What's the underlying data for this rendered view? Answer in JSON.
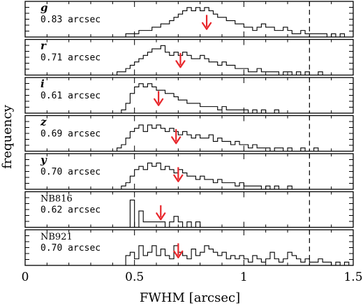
{
  "chart_data": {
    "type": "histogram",
    "ylabel": "frequency",
    "xlabel": "FWHM [arcsec]",
    "xlim": [
      0,
      1.5
    ],
    "x_ticks": [
      0,
      0.5,
      1,
      1.5
    ],
    "x_tick_labels": [
      "0",
      "0.5",
      "1",
      "1.5"
    ],
    "bin_width": 0.02,
    "reference_line_x": 1.3,
    "colors": {
      "arrow": "#e8262b",
      "line": "#000000",
      "background": "#ffffff"
    },
    "panels": [
      {
        "band": "g",
        "band_italic": true,
        "median_label": "0.83 arcsec",
        "median": 0.83,
        "freq_max": 10,
        "bins": [
          [
            0.44,
            0
          ],
          [
            0.46,
            1
          ],
          [
            0.48,
            1
          ],
          [
            0.5,
            1
          ],
          [
            0.52,
            2
          ],
          [
            0.54,
            2
          ],
          [
            0.56,
            2
          ],
          [
            0.58,
            3
          ],
          [
            0.6,
            3
          ],
          [
            0.62,
            4
          ],
          [
            0.64,
            4
          ],
          [
            0.66,
            5
          ],
          [
            0.68,
            6
          ],
          [
            0.7,
            7
          ],
          [
            0.72,
            8
          ],
          [
            0.74,
            9
          ],
          [
            0.76,
            8
          ],
          [
            0.78,
            9
          ],
          [
            0.8,
            8
          ],
          [
            0.82,
            9
          ],
          [
            0.84,
            8
          ],
          [
            0.86,
            7
          ],
          [
            0.88,
            6
          ],
          [
            0.9,
            6
          ],
          [
            0.92,
            5
          ],
          [
            0.94,
            5
          ],
          [
            0.96,
            4
          ],
          [
            0.98,
            4
          ],
          [
            1.0,
            3
          ],
          [
            1.02,
            3
          ],
          [
            1.04,
            2
          ],
          [
            1.06,
            3
          ],
          [
            1.08,
            4
          ],
          [
            1.1,
            3
          ],
          [
            1.12,
            3
          ],
          [
            1.14,
            2
          ],
          [
            1.16,
            2
          ],
          [
            1.18,
            3
          ],
          [
            1.2,
            2
          ],
          [
            1.22,
            1
          ],
          [
            1.24,
            1
          ],
          [
            1.26,
            2
          ],
          [
            1.28,
            1
          ],
          [
            1.3,
            1
          ],
          [
            1.32,
            1
          ],
          [
            1.34,
            1
          ],
          [
            1.36,
            1
          ],
          [
            1.38,
            0
          ],
          [
            1.4,
            1
          ],
          [
            1.42,
            0
          ],
          [
            1.44,
            1
          ],
          [
            1.46,
            0
          ]
        ]
      },
      {
        "band": "r",
        "band_italic": true,
        "median_label": "0.71 arcsec",
        "median": 0.71,
        "freq_max": 10,
        "bins": [
          [
            0.42,
            1
          ],
          [
            0.44,
            1
          ],
          [
            0.46,
            2
          ],
          [
            0.48,
            3
          ],
          [
            0.5,
            4
          ],
          [
            0.52,
            5
          ],
          [
            0.54,
            6
          ],
          [
            0.56,
            7
          ],
          [
            0.58,
            8
          ],
          [
            0.6,
            8
          ],
          [
            0.62,
            9
          ],
          [
            0.64,
            7
          ],
          [
            0.66,
            6
          ],
          [
            0.68,
            7
          ],
          [
            0.7,
            6
          ],
          [
            0.72,
            7
          ],
          [
            0.74,
            6
          ],
          [
            0.76,
            5
          ],
          [
            0.78,
            5
          ],
          [
            0.8,
            6
          ],
          [
            0.82,
            5
          ],
          [
            0.84,
            4
          ],
          [
            0.86,
            4
          ],
          [
            0.88,
            3
          ],
          [
            0.9,
            4
          ],
          [
            0.92,
            3
          ],
          [
            0.94,
            3
          ],
          [
            0.96,
            2
          ],
          [
            0.98,
            2
          ],
          [
            1.0,
            2
          ],
          [
            1.02,
            1
          ],
          [
            1.04,
            1
          ],
          [
            1.06,
            2
          ],
          [
            1.08,
            1
          ],
          [
            1.1,
            1
          ],
          [
            1.12,
            1
          ],
          [
            1.14,
            1
          ],
          [
            1.16,
            0
          ],
          [
            1.18,
            1
          ],
          [
            1.2,
            1
          ],
          [
            1.22,
            0
          ],
          [
            1.24,
            1
          ],
          [
            1.26,
            0
          ],
          [
            1.28,
            1
          ],
          [
            1.3,
            0
          ],
          [
            1.32,
            0
          ],
          [
            1.34,
            1
          ],
          [
            1.36,
            0
          ]
        ]
      },
      {
        "band": "i",
        "band_italic": true,
        "median_label": "0.61 arcsec",
        "median": 0.61,
        "freq_max": 10,
        "bins": [
          [
            0.44,
            1
          ],
          [
            0.46,
            3
          ],
          [
            0.48,
            6
          ],
          [
            0.5,
            8
          ],
          [
            0.52,
            9
          ],
          [
            0.54,
            8
          ],
          [
            0.56,
            9
          ],
          [
            0.58,
            8
          ],
          [
            0.6,
            7
          ],
          [
            0.62,
            7
          ],
          [
            0.64,
            6
          ],
          [
            0.66,
            6
          ],
          [
            0.68,
            5
          ],
          [
            0.7,
            4
          ],
          [
            0.72,
            4
          ],
          [
            0.74,
            3
          ],
          [
            0.76,
            3
          ],
          [
            0.78,
            3
          ],
          [
            0.8,
            2
          ],
          [
            0.82,
            2
          ],
          [
            0.84,
            2
          ],
          [
            0.86,
            2
          ],
          [
            0.88,
            1
          ],
          [
            0.9,
            2
          ],
          [
            0.92,
            1
          ],
          [
            0.94,
            1
          ],
          [
            0.96,
            1
          ],
          [
            0.98,
            1
          ],
          [
            1.0,
            1
          ],
          [
            1.02,
            0
          ],
          [
            1.04,
            1
          ],
          [
            1.06,
            0
          ],
          [
            1.08,
            1
          ],
          [
            1.1,
            0
          ],
          [
            1.12,
            0
          ],
          [
            1.14,
            1
          ],
          [
            1.16,
            0
          ]
        ]
      },
      {
        "band": "z",
        "band_italic": true,
        "median_label": "0.69 arcsec",
        "median": 0.69,
        "freq_max": 10,
        "bins": [
          [
            0.42,
            1
          ],
          [
            0.44,
            2
          ],
          [
            0.46,
            4
          ],
          [
            0.48,
            6
          ],
          [
            0.5,
            7
          ],
          [
            0.52,
            8
          ],
          [
            0.54,
            6
          ],
          [
            0.56,
            8
          ],
          [
            0.58,
            7
          ],
          [
            0.6,
            8
          ],
          [
            0.62,
            7
          ],
          [
            0.64,
            6
          ],
          [
            0.66,
            7
          ],
          [
            0.68,
            6
          ],
          [
            0.7,
            5
          ],
          [
            0.72,
            6
          ],
          [
            0.74,
            5
          ],
          [
            0.76,
            4
          ],
          [
            0.78,
            5
          ],
          [
            0.8,
            4
          ],
          [
            0.82,
            4
          ],
          [
            0.84,
            5
          ],
          [
            0.86,
            3
          ],
          [
            0.88,
            4
          ],
          [
            0.9,
            3
          ],
          [
            0.92,
            3
          ],
          [
            0.94,
            2
          ],
          [
            0.96,
            3
          ],
          [
            0.98,
            2
          ],
          [
            1.0,
            2
          ],
          [
            1.02,
            1
          ],
          [
            1.04,
            2
          ],
          [
            1.06,
            1
          ],
          [
            1.08,
            1
          ],
          [
            1.1,
            1
          ],
          [
            1.12,
            0
          ],
          [
            1.14,
            1
          ],
          [
            1.16,
            1
          ],
          [
            1.18,
            0
          ],
          [
            1.2,
            1
          ],
          [
            1.22,
            0
          ],
          [
            1.24,
            0
          ],
          [
            1.26,
            1
          ],
          [
            1.28,
            0
          ],
          [
            1.3,
            0
          ],
          [
            1.32,
            1
          ],
          [
            1.34,
            0
          ]
        ]
      },
      {
        "band": "y",
        "band_italic": true,
        "median_label": "0.70 arcsec",
        "median": 0.7,
        "freq_max": 10,
        "bins": [
          [
            0.44,
            1
          ],
          [
            0.46,
            2
          ],
          [
            0.48,
            4
          ],
          [
            0.5,
            6
          ],
          [
            0.52,
            7
          ],
          [
            0.54,
            6
          ],
          [
            0.56,
            8
          ],
          [
            0.58,
            7
          ],
          [
            0.6,
            8
          ],
          [
            0.62,
            6
          ],
          [
            0.64,
            7
          ],
          [
            0.66,
            6
          ],
          [
            0.68,
            5
          ],
          [
            0.7,
            6
          ],
          [
            0.72,
            5
          ],
          [
            0.74,
            4
          ],
          [
            0.76,
            4
          ],
          [
            0.78,
            3
          ],
          [
            0.8,
            4
          ],
          [
            0.82,
            3
          ],
          [
            0.84,
            3
          ],
          [
            0.86,
            2
          ],
          [
            0.88,
            3
          ],
          [
            0.9,
            2
          ],
          [
            0.92,
            2
          ],
          [
            0.94,
            2
          ],
          [
            0.96,
            1
          ],
          [
            0.98,
            2
          ],
          [
            1.0,
            1
          ],
          [
            1.02,
            1
          ],
          [
            1.04,
            1
          ],
          [
            1.06,
            1
          ],
          [
            1.08,
            0
          ],
          [
            1.1,
            1
          ],
          [
            1.12,
            0
          ],
          [
            1.14,
            1
          ],
          [
            1.16,
            0
          ],
          [
            1.18,
            0
          ],
          [
            1.2,
            1
          ],
          [
            1.22,
            0
          ]
        ]
      },
      {
        "band": "NB816",
        "band_italic": false,
        "median_label": "0.62 arcsec",
        "median": 0.62,
        "freq_max": 6,
        "bins": [
          [
            0.46,
            0
          ],
          [
            0.48,
            5
          ],
          [
            0.5,
            0
          ],
          [
            0.52,
            3
          ],
          [
            0.54,
            1
          ],
          [
            0.56,
            1
          ],
          [
            0.58,
            1
          ],
          [
            0.6,
            1
          ],
          [
            0.62,
            1
          ],
          [
            0.64,
            0
          ],
          [
            0.66,
            1
          ],
          [
            0.68,
            2
          ],
          [
            0.7,
            1
          ],
          [
            0.72,
            0
          ],
          [
            0.74,
            1
          ],
          [
            0.76,
            0
          ],
          [
            0.78,
            1
          ],
          [
            0.8,
            0
          ]
        ]
      },
      {
        "band": "NB921",
        "band_italic": false,
        "median_label": "0.70 arcsec",
        "median": 0.7,
        "freq_max": 10,
        "bins": [
          [
            0.44,
            0
          ],
          [
            0.46,
            3
          ],
          [
            0.48,
            4
          ],
          [
            0.5,
            2
          ],
          [
            0.52,
            6
          ],
          [
            0.54,
            3
          ],
          [
            0.56,
            4
          ],
          [
            0.58,
            6
          ],
          [
            0.6,
            3
          ],
          [
            0.62,
            5
          ],
          [
            0.64,
            3
          ],
          [
            0.66,
            2
          ],
          [
            0.68,
            6
          ],
          [
            0.7,
            4
          ],
          [
            0.72,
            3
          ],
          [
            0.74,
            2
          ],
          [
            0.76,
            5
          ],
          [
            0.78,
            3
          ],
          [
            0.8,
            4
          ],
          [
            0.82,
            6
          ],
          [
            0.84,
            5
          ],
          [
            0.86,
            4
          ],
          [
            0.88,
            3
          ],
          [
            0.9,
            4
          ],
          [
            0.92,
            2
          ],
          [
            0.94,
            3
          ],
          [
            0.96,
            2
          ],
          [
            0.98,
            3
          ],
          [
            1.0,
            2
          ],
          [
            1.02,
            1
          ],
          [
            1.04,
            3
          ],
          [
            1.06,
            2
          ],
          [
            1.08,
            1
          ],
          [
            1.1,
            2
          ],
          [
            1.12,
            4
          ],
          [
            1.14,
            2
          ],
          [
            1.16,
            1
          ],
          [
            1.18,
            2
          ],
          [
            1.2,
            4
          ],
          [
            1.22,
            3
          ],
          [
            1.24,
            2
          ],
          [
            1.26,
            1
          ],
          [
            1.28,
            2
          ],
          [
            1.3,
            1
          ],
          [
            1.32,
            1
          ],
          [
            1.34,
            2
          ],
          [
            1.36,
            1
          ],
          [
            1.38,
            1
          ],
          [
            1.4,
            0
          ],
          [
            1.42,
            1
          ],
          [
            1.44,
            0
          ],
          [
            1.46,
            1
          ],
          [
            1.48,
            0
          ]
        ]
      }
    ]
  }
}
